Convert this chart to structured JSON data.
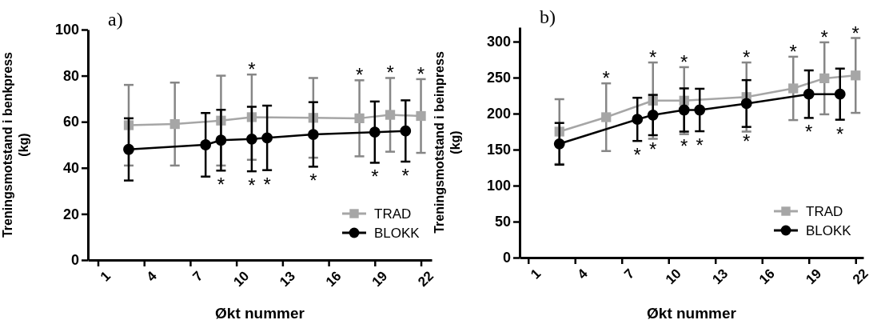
{
  "chart_data": [
    {
      "type": "line",
      "title": "a)",
      "xlabel": "Økt nummer",
      "ylabel": "Treningsmotstand i benkpress\n(kg)",
      "xlim": [
        0.35,
        22.7
      ],
      "xticks": [
        1,
        4,
        7,
        10,
        13,
        16,
        19,
        22
      ],
      "ylim": [
        0,
        100
      ],
      "yticks": [
        0,
        20,
        40,
        60,
        80,
        100
      ],
      "grid": false,
      "legend": "bottom right",
      "series": [
        {
          "name": "TRAD",
          "color": "#a6a6a6",
          "marker": "square",
          "x": [
            3,
            6,
            9,
            11,
            15,
            18,
            20,
            22
          ],
          "values": [
            58.5,
            59,
            60.5,
            62,
            61.7,
            61.5,
            63,
            62.5
          ],
          "errors": [
            17.5,
            18,
            19.5,
            18.5,
            17.3,
            16.5,
            16,
            16
          ]
        },
        {
          "name": "BLOKK",
          "color": "#000000",
          "marker": "circle",
          "x": [
            3,
            8,
            9,
            11,
            12,
            15,
            19,
            21
          ],
          "values": [
            48,
            50,
            52,
            52.5,
            53,
            54.5,
            55.5,
            56
          ],
          "errors": [
            13.5,
            13.8,
            13.2,
            14,
            14,
            14,
            13.3,
            13.3
          ]
        }
      ],
      "annotations": [
        {
          "text": "*",
          "x": 11,
          "y": 80.5
        },
        {
          "text": "*",
          "x": 18,
          "y": 78
        },
        {
          "text": "*",
          "x": 20,
          "y": 79
        },
        {
          "text": "*",
          "x": 22,
          "y": 78.5
        },
        {
          "text": "*",
          "x": 9,
          "y": 38.8
        },
        {
          "text": "*",
          "x": 11,
          "y": 38.5
        },
        {
          "text": "*",
          "x": 12,
          "y": 39
        },
        {
          "text": "*",
          "x": 15,
          "y": 40.5
        },
        {
          "text": "*",
          "x": 19,
          "y": 42.2
        },
        {
          "text": "*",
          "x": 21,
          "y": 42.7
        }
      ]
    },
    {
      "type": "line",
      "title": "b)",
      "xlabel": "Økt nummer",
      "ylabel": "Treningsmotstand i beinpress\n(kg)",
      "xlim": [
        0.45,
        22.5
      ],
      "xticks": [
        1,
        4,
        7,
        10,
        13,
        16,
        19,
        22
      ],
      "ylim": [
        0,
        320
      ],
      "yticks": [
        0,
        50,
        100,
        150,
        200,
        250,
        300
      ],
      "grid": false,
      "legend": "bottom right",
      "series": [
        {
          "name": "TRAD",
          "color": "#a6a6a6",
          "marker": "square",
          "x": [
            3,
            6,
            9,
            11,
            15,
            18,
            20,
            22
          ],
          "values": [
            175,
            195,
            218,
            218,
            223,
            235,
            249,
            253
          ],
          "errors": [
            45,
            47,
            53,
            46.5,
            48,
            44,
            50,
            52
          ]
        },
        {
          "name": "BLOKK",
          "color": "#000000",
          "marker": "circle",
          "x": [
            3,
            8,
            9,
            11,
            12,
            15,
            19,
            21
          ],
          "values": [
            158,
            192,
            198,
            205,
            205,
            214,
            227,
            227
          ],
          "errors": [
            29,
            30,
            28,
            30,
            29.5,
            32.5,
            33,
            35.5
          ]
        }
      ],
      "annotations": [
        {
          "text": "*",
          "x": 6,
          "y": 242
        },
        {
          "text": "*",
          "x": 9,
          "y": 271
        },
        {
          "text": "*",
          "x": 11,
          "y": 264.5
        },
        {
          "text": "*",
          "x": 15,
          "y": 271
        },
        {
          "text": "*",
          "x": 18,
          "y": 279
        },
        {
          "text": "*",
          "x": 20,
          "y": 299
        },
        {
          "text": "*",
          "x": 22,
          "y": 305
        },
        {
          "text": "*",
          "x": 8,
          "y": 162
        },
        {
          "text": "*",
          "x": 9,
          "y": 170
        },
        {
          "text": "*",
          "x": 11,
          "y": 175
        },
        {
          "text": "*",
          "x": 12,
          "y": 175.5
        },
        {
          "text": "*",
          "x": 15,
          "y": 181.5
        },
        {
          "text": "*",
          "x": 19,
          "y": 194
        },
        {
          "text": "*",
          "x": 21,
          "y": 191.5
        }
      ]
    }
  ]
}
